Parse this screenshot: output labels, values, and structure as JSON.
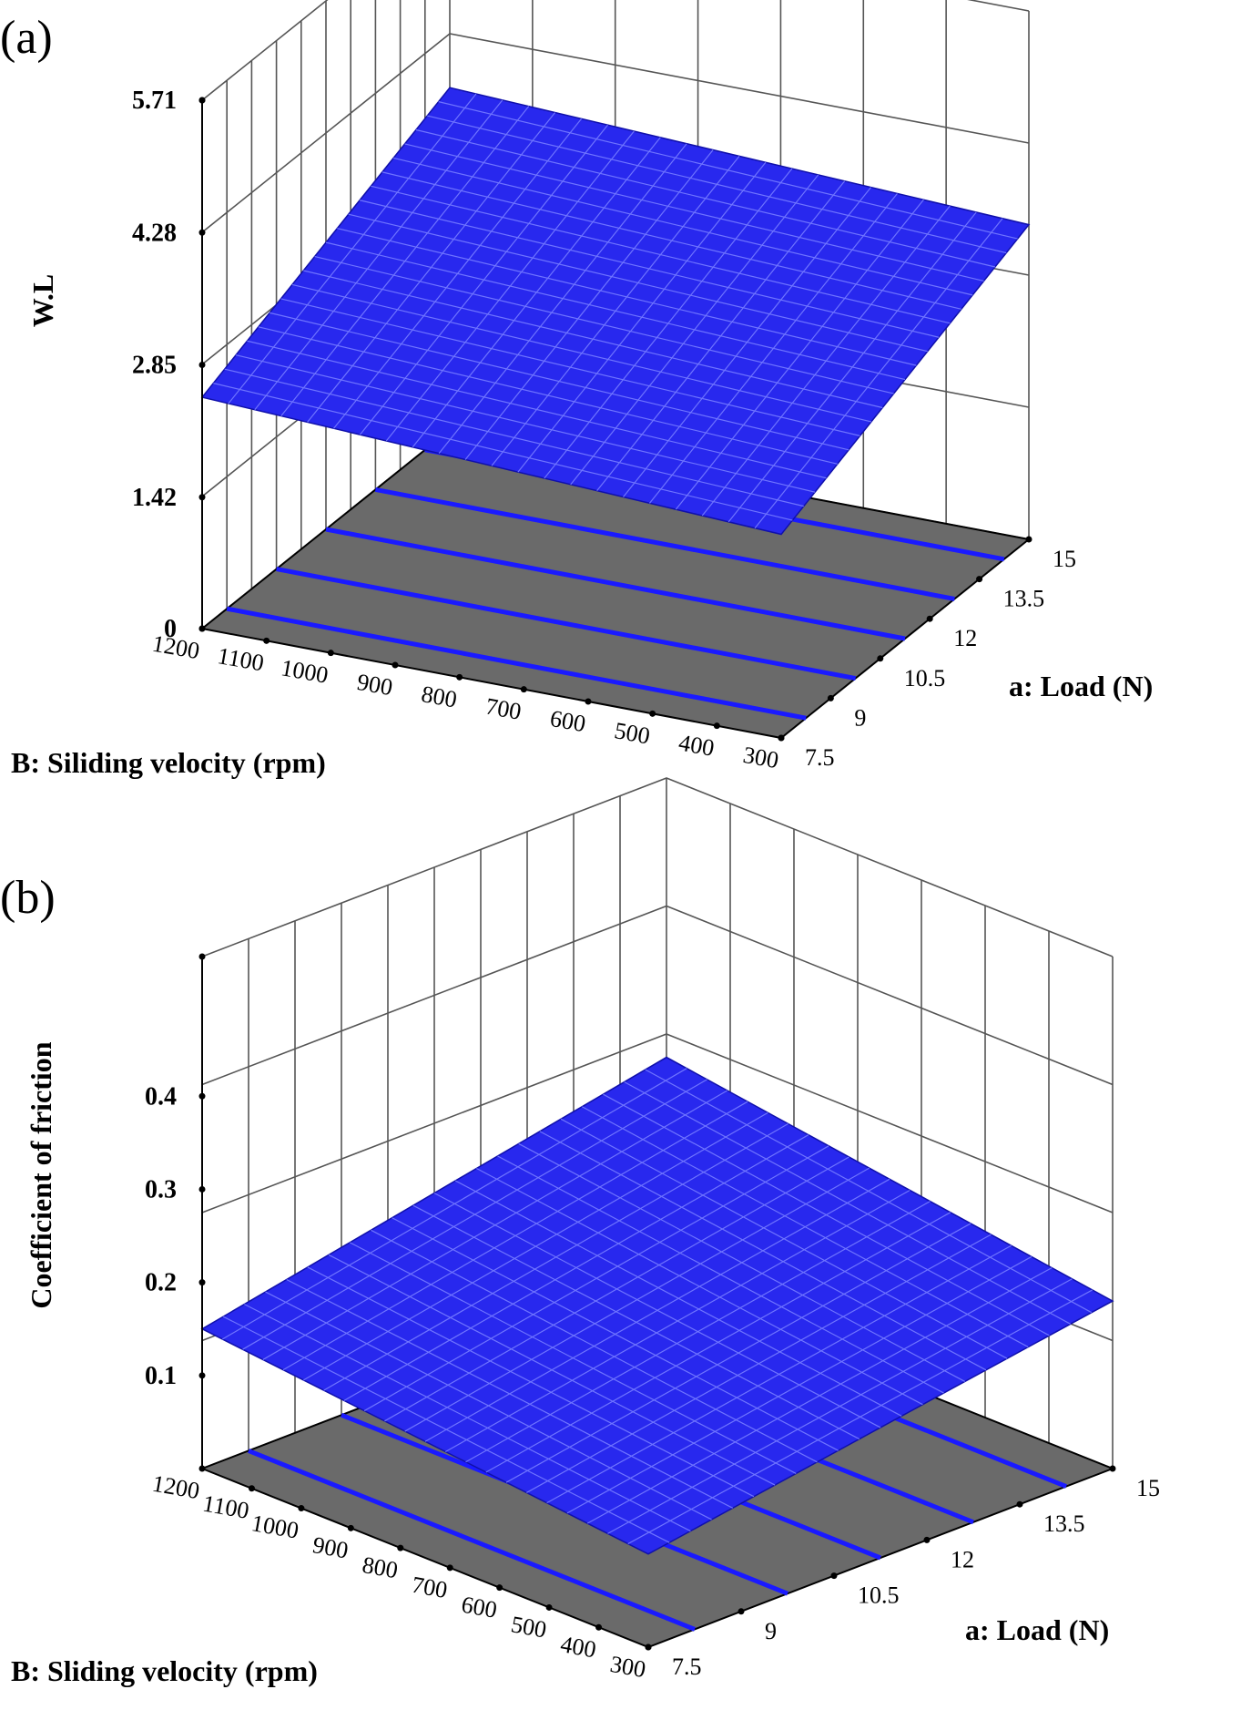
{
  "chart_data": [
    {
      "panel_label": "(a)",
      "type": "surface3d",
      "xlabel": "B: Siliding velocity (rpm)",
      "ylabel": "a: Load (N)",
      "zlabel": "W.L",
      "x_ticks": [
        "1200",
        "1100",
        "1000",
        "900",
        "800",
        "700",
        "600",
        "500",
        "400",
        "300"
      ],
      "y_ticks": [
        "7.5",
        "9",
        "10.5",
        "12",
        "13.5",
        "15"
      ],
      "z_ticks": [
        "0",
        "1.42",
        "2.85",
        "4.28",
        "5.71"
      ],
      "xlim": [
        300,
        1200
      ],
      "ylim": [
        7.5,
        15
      ],
      "zlim": [
        0,
        5.71
      ],
      "surface_corners": [
        {
          "velocity": 1200,
          "load": 7.5,
          "wl": 2.5
        },
        {
          "velocity": 300,
          "load": 7.5,
          "wl": 2.2
        },
        {
          "velocity": 300,
          "load": 15,
          "wl": 3.4
        },
        {
          "velocity": 1200,
          "load": 15,
          "wl": 3.7
        }
      ],
      "contour_lines": 5,
      "surface_color": "#2828ee",
      "floor_color": "#6a6a6a"
    },
    {
      "panel_label": "(b)",
      "type": "surface3d",
      "xlabel": "B: Sliding velocity (rpm)",
      "ylabel": "a: Load (N)",
      "zlabel": "Coefficient of friction",
      "x_ticks": [
        "1200",
        "1100",
        "1000",
        "900",
        "800",
        "700",
        "600",
        "500",
        "400",
        "300"
      ],
      "y_ticks": [
        "7.5",
        "9",
        "10.5",
        "12",
        "13.5",
        "15"
      ],
      "z_ticks": [
        "0.1",
        "0.2",
        "0.3",
        "0.4"
      ],
      "xlim": [
        300,
        1200
      ],
      "ylim": [
        7.5,
        15
      ],
      "zlim": [
        0,
        0.55
      ],
      "surface_corners": [
        {
          "velocity": 1200,
          "load": 7.5,
          "cof": 0.15
        },
        {
          "velocity": 300,
          "load": 7.5,
          "cof": 0.1
        },
        {
          "velocity": 300,
          "load": 15,
          "cof": 0.18
        },
        {
          "velocity": 1200,
          "load": 15,
          "cof": 0.25
        }
      ],
      "contour_lines": 5,
      "surface_color": "#2828ee",
      "floor_color": "#6a6a6a"
    }
  ]
}
